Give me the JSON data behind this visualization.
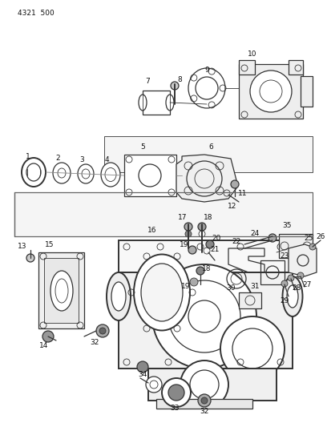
{
  "part_number": "4321 500",
  "background_color": "#ffffff",
  "line_color": "#333333",
  "figsize": [
    4.08,
    5.33
  ],
  "dpi": 100,
  "label_fontsize": 6.5,
  "lw_heavy": 1.4,
  "lw_med": 0.9,
  "lw_light": 0.6
}
